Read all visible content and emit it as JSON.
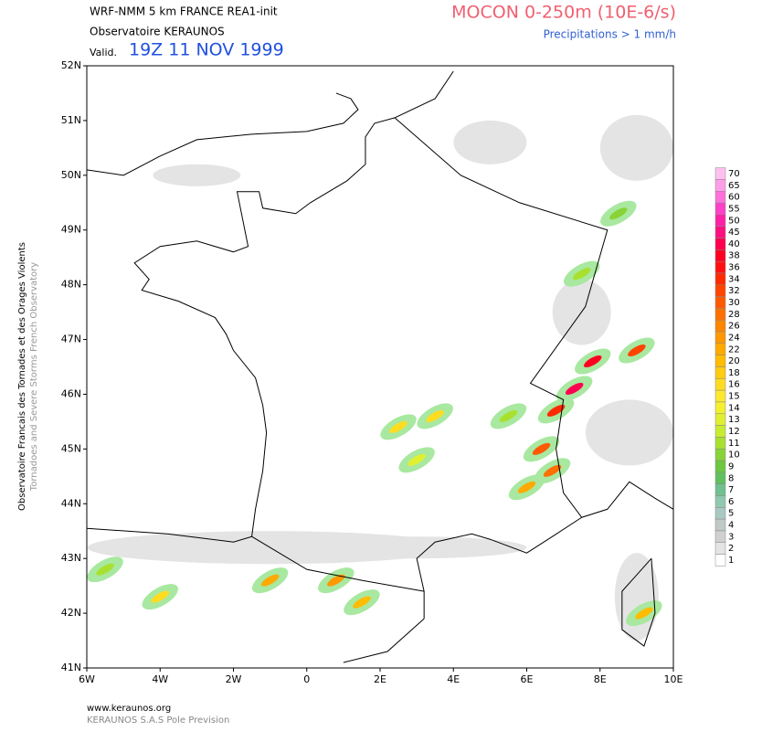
{
  "header": {
    "line1": "WRF-NMM 5 km FRANCE  REA1-init",
    "line2": "Observatoire KERAUNOS",
    "valid_label": "Valid.",
    "valid_time": "19Z 11 NOV 1999",
    "title": "MOCON 0-250m (10E-6/s)",
    "subtitle": "Precipitations > 1 mm/h"
  },
  "side_text": {
    "line1": "Observatoire Francais des Tornades et des Orages Violents",
    "line2": "Tornadoes and Severe Storms French Observatory"
  },
  "map": {
    "lat_labels": [
      "52N",
      "51N",
      "50N",
      "49N",
      "48N",
      "47N",
      "46N",
      "45N",
      "44N",
      "43N",
      "42N",
      "41N"
    ],
    "lon_labels": [
      "6W",
      "4W",
      "2W",
      "0",
      "2E",
      "4E",
      "6E",
      "8E",
      "10E"
    ]
  },
  "legend": {
    "levels": [
      70,
      65,
      60,
      55,
      50,
      45,
      40,
      38,
      36,
      34,
      32,
      30,
      28,
      26,
      24,
      22,
      20,
      18,
      16,
      15,
      14,
      13,
      12,
      11,
      10,
      9,
      8,
      7,
      6,
      5,
      4,
      3,
      2,
      1
    ],
    "colors": [
      "#ffc0f0",
      "#ff9ee8",
      "#ff70dc",
      "#ff40c8",
      "#ff20a8",
      "#ff1080",
      "#ff0050",
      "#ff0020",
      "#ff1010",
      "#ff2a00",
      "#ff4400",
      "#ff5a00",
      "#ff7000",
      "#ff8400",
      "#ff9800",
      "#ffaa00",
      "#ffbc00",
      "#ffcc10",
      "#ffdc20",
      "#ffe830",
      "#f4f030",
      "#e0f030",
      "#c8ec30",
      "#a8e030",
      "#88d438",
      "#6cc840",
      "#60c060",
      "#70c090",
      "#90c8b0",
      "#a8c8c0",
      "#c0c8c8",
      "#d0d0d0",
      "#e4e4e4",
      "#ffffff"
    ]
  },
  "footer": {
    "url": "www.keraunos.org",
    "credit": "KERAUNOS S.A.S Pole Prevision"
  }
}
